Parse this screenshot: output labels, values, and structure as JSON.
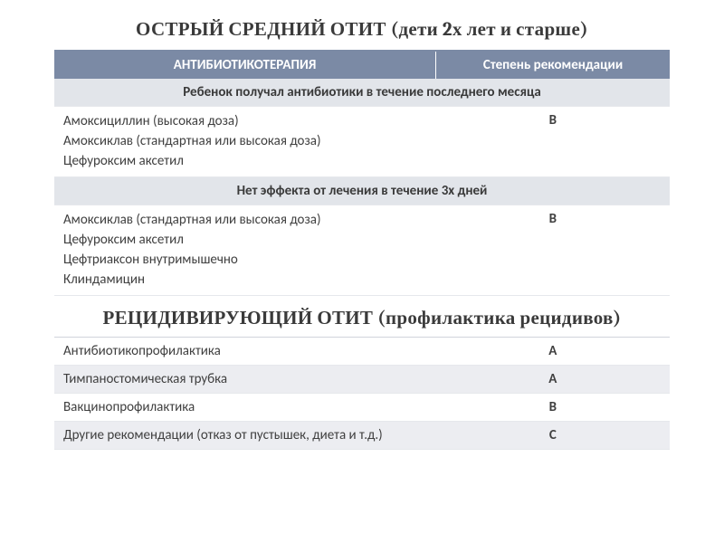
{
  "title1": "ОСТРЫЙ СРЕДНИЙ ОТИТ (дети 2х лет и старше)",
  "title2": "РЕЦИДИВИРУЮЩИЙ ОТИТ (профилактика рецидивов)",
  "table1": {
    "header_left": "АНТИБИОТИКОТЕРАПИЯ",
    "header_right": "Степень рекомендации",
    "sections": [
      {
        "subheader": "Ребенок получал антибиотики в течение последнего месяца",
        "meds": [
          "Амоксициллин (высокая доза)",
          "Амоксиклав (стандартная или высокая доза)",
          "Цефуроксим аксетил"
        ],
        "grade": "B"
      },
      {
        "subheader": "Нет эффекта от лечения в течение 3х дней",
        "meds": [
          "Амоксиклав (стандартная или высокая доза)",
          "Цефуроксим аксетил",
          "Цефтриаксон внутримышечно",
          "Клиндамицин"
        ],
        "grade": "B"
      }
    ]
  },
  "table2": {
    "rows": [
      {
        "name": "Антибиотикопрофилактика",
        "grade": "A"
      },
      {
        "name": "Тимпаностомическая трубка",
        "grade": "A"
      },
      {
        "name": "Вакцинопрофилактика",
        "grade": "B"
      },
      {
        "name": "Другие рекомендации (отказ от пустышек, диета и т.д.)",
        "grade": "C"
      }
    ]
  },
  "colors": {
    "header_bg": "#7b8aa5",
    "header_text": "#ffffff",
    "sub_bg": "#e2e5ea",
    "alt_bg": "#ecedf1",
    "text": "#404040",
    "border": "#e6e8ec"
  }
}
